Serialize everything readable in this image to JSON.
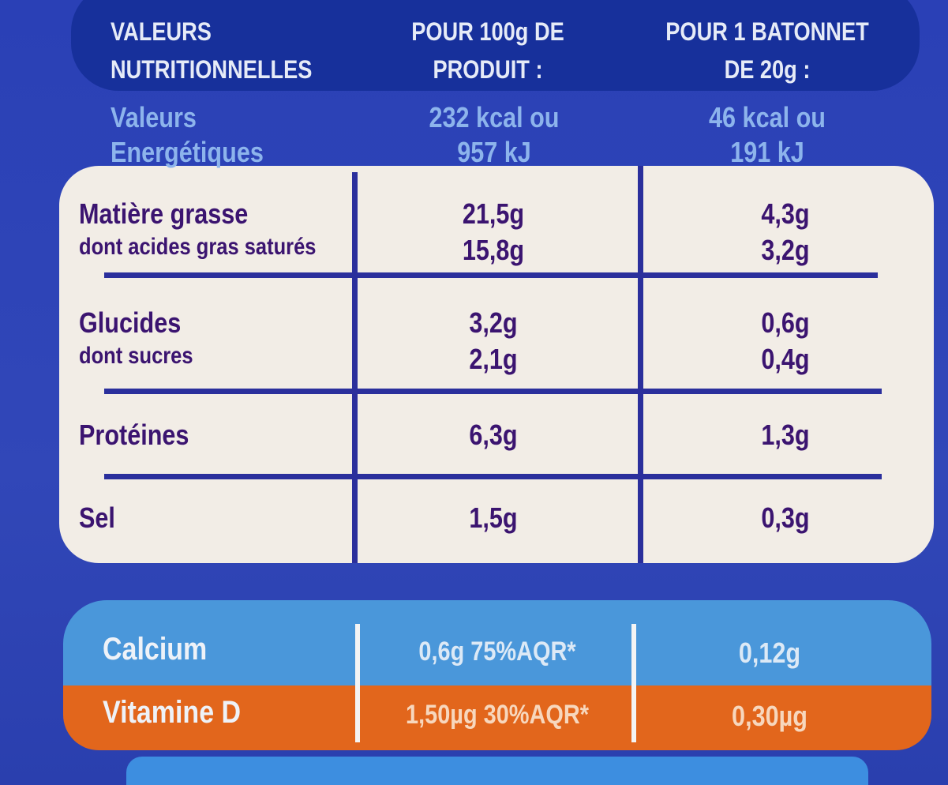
{
  "header": {
    "columns": [
      [
        "VALEURS",
        "NUTRITIONNELLES"
      ],
      [
        "POUR 100g DE",
        "PRODUIT :"
      ],
      [
        "POUR 1 BATONNET",
        "DE 20g :"
      ]
    ]
  },
  "energy": {
    "label": [
      "Valeurs",
      "Energétiques"
    ],
    "per_100g": [
      "232 kcal ou",
      "957 kJ"
    ],
    "per_stick": [
      "46 kcal ou",
      "191 kJ"
    ]
  },
  "table": {
    "rows": [
      {
        "label": [
          "Matière grasse",
          "dont acides gras saturés"
        ],
        "per_100g": [
          "21,5g",
          "15,8g"
        ],
        "per_stick": [
          "4,3g",
          "3,2g"
        ]
      },
      {
        "label": [
          "Glucides",
          "dont sucres"
        ],
        "per_100g": [
          "3,2g",
          "2,1g"
        ],
        "per_stick": [
          "0,6g",
          "0,4g"
        ]
      },
      {
        "label": [
          "Protéines"
        ],
        "per_100g": [
          "6,3g"
        ],
        "per_stick": [
          "1,3g"
        ]
      },
      {
        "label": [
          "Sel"
        ],
        "per_100g": [
          "1,5g"
        ],
        "per_stick": [
          "0,3g"
        ]
      }
    ]
  },
  "minerals": [
    {
      "label": "Calcium",
      "per_100g": "0,6g 75%AQR*",
      "per_stick": "0,12g"
    },
    {
      "label": "Vitamine D",
      "per_100g": "1,50µg 30%AQR*",
      "per_stick": "0,30µg"
    }
  ]
}
